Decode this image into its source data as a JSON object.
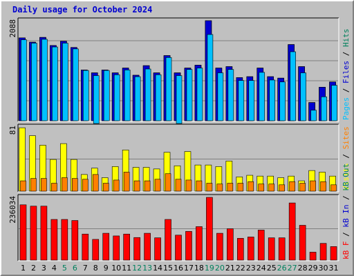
{
  "chart_data": {
    "type": "bar",
    "title": "Daily usage for October 2024",
    "colors": {
      "hits": "#00805c",
      "files": "#0000d0",
      "pages": "#00c0ff",
      "visits": "#ffff00",
      "sites": "#ff8000",
      "kb_f": "#ff0000",
      "kb_in": "#0000d0",
      "kb_out": "#00805c",
      "title": "#0000d0",
      "weekend_tick": "#00805c",
      "weekday_tick": "#000000"
    },
    "days": [
      "1",
      "2",
      "3",
      "4",
      "5",
      "6",
      "7",
      "8",
      "9",
      "10",
      "11",
      "12",
      "13",
      "14",
      "15",
      "16",
      "17",
      "18",
      "19",
      "20",
      "21",
      "22",
      "23",
      "24",
      "25",
      "26",
      "27",
      "28",
      "29",
      "30",
      "31"
    ],
    "weekend_days": [
      "5",
      "6",
      "12",
      "13",
      "19",
      "20",
      "26",
      "27"
    ],
    "panels": [
      {
        "id": "pages-files-hits",
        "max_label": "2088",
        "ymax": 2088,
        "legend": [
          {
            "text": "Pages",
            "color": "#00c0ff"
          },
          {
            "text": " / ",
            "color": "#000000"
          },
          {
            "text": "Files",
            "color": "#0000d0"
          },
          {
            "text": " / ",
            "color": "#000000"
          },
          {
            "text": "Hits",
            "color": "#00805c"
          }
        ],
        "series": [
          {
            "name": "Hits",
            "color": "#00805c",
            "values": [
              1730,
              1640,
              1740,
              1570,
              1660,
              1530,
              1060,
              1000,
              1060,
              1000,
              1100,
              950,
              1150,
              1000,
              1360,
              1000,
              1100,
              1160,
              2088,
              1100,
              1130,
              900,
              920,
              1100,
              920,
              890,
              1590,
              1130,
              380,
              700,
              810
            ]
          },
          {
            "name": "Files",
            "color": "#0000d0",
            "values": [
              1730,
              1640,
              1740,
              1570,
              1660,
              1530,
              1060,
              1000,
              1060,
              1000,
              1100,
              950,
              1150,
              1000,
              1360,
              1000,
              1100,
              1160,
              2088,
              1100,
              1130,
              900,
              920,
              1100,
              920,
              890,
              1590,
              1130,
              380,
              700,
              810
            ]
          },
          {
            "name": "Pages",
            "color": "#00c0ff",
            "values": [
              1690,
              1620,
              1700,
              1540,
              1620,
              1500,
              1050,
              1000,
              1050,
              960,
              1060,
              920,
              1080,
              960,
              1320,
              1000,
              1070,
              1100,
              1800,
              1000,
              1070,
              840,
              840,
              1010,
              850,
              810,
              1440,
              1000,
              220,
              500,
              740
            ]
          }
        ]
      },
      {
        "id": "visits-sites",
        "max_label": "81",
        "ymax": 81,
        "legend": [
          {
            "text": "Visits",
            "color": "#ffff00"
          },
          {
            "text": " / ",
            "color": "#000000"
          },
          {
            "text": "Sites",
            "color": "#ff8000"
          }
        ],
        "series": [
          {
            "name": "Visits",
            "color": "#ffff00",
            "values": [
              80,
              70,
              58,
              40,
              60,
              40,
              21,
              29,
              17,
              31,
              52,
              30,
              30,
              28,
              49,
              32,
              50,
              33,
              33,
              31,
              38,
              18,
              20,
              19,
              19,
              17,
              19,
              13,
              26,
              24,
              19
            ]
          },
          {
            "name": "Sites",
            "color": "#ff8000",
            "values": [
              13,
              16,
              16,
              10,
              17,
              16,
              15,
              21,
              10,
              14,
              24,
              13,
              13,
              15,
              22,
              15,
              14,
              13,
              10,
              9,
              10,
              10,
              12,
              9,
              9,
              8,
              12,
              10,
              13,
              12,
              8
            ]
          }
        ]
      },
      {
        "id": "kbytes",
        "max_label": "236034",
        "ymax": 236034,
        "legend": [
          {
            "text": "kB F",
            "color": "#ff0000"
          },
          {
            "text": " / ",
            "color": "#000000"
          },
          {
            "text": "kB In",
            "color": "#0000d0"
          },
          {
            "text": " / ",
            "color": "#000000"
          },
          {
            "text": "kB Out",
            "color": "#00805c"
          }
        ],
        "series": [
          {
            "name": "kB F",
            "color": "#ff0000",
            "values": [
              208000,
              203000,
              203000,
              153000,
              153000,
              149000,
              98000,
              78000,
              101000,
              91000,
              98000,
              85000,
              101000,
              84000,
              153000,
              94000,
              108000,
              126000,
              236034,
              101000,
              118000,
              82000,
              87000,
              113000,
              84000,
              84000,
              215000,
              131000,
              30000,
              63000,
              51000
            ]
          }
        ]
      }
    ]
  }
}
